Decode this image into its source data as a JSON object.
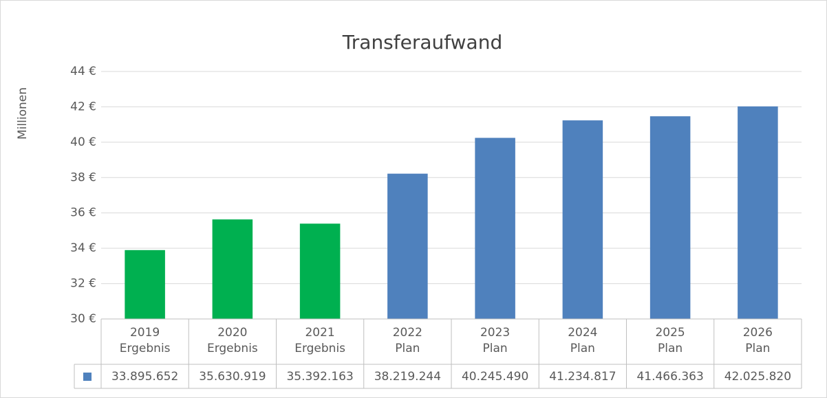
{
  "chart_data": {
    "type": "bar",
    "title": "Transferaufwand",
    "y_label": "Millionen",
    "categories": [
      [
        "2019",
        "Ergebnis"
      ],
      [
        "2020",
        "Ergebnis"
      ],
      [
        "2021",
        "Ergebnis"
      ],
      [
        "2022",
        "Plan"
      ],
      [
        "2023",
        "Plan"
      ],
      [
        "2024",
        "Plan"
      ],
      [
        "2025",
        "Plan"
      ],
      [
        "2026",
        "Plan"
      ]
    ],
    "series": [
      {
        "color": "#4f81bd",
        "values": [
          33.895652,
          35.630919,
          35.392163,
          38.219244,
          40.24549,
          41.234817,
          41.466363,
          42.02582
        ],
        "value_labels": [
          "33.895.652",
          "35.630.919",
          "35.392.163",
          "38.219.244",
          "40.245.490",
          "41.234.817",
          "41.466.363",
          "42.025.820"
        ]
      }
    ],
    "bar_colors": [
      "#00b050",
      "#00b050",
      "#00b050",
      "#4f81bd",
      "#4f81bd",
      "#4f81bd",
      "#4f81bd",
      "#4f81bd"
    ],
    "ylim": [
      30,
      44
    ],
    "yticks": [
      {
        "value": 30,
        "label": "30 €"
      },
      {
        "value": 32,
        "label": "32 €"
      },
      {
        "value": 34,
        "label": "34 €"
      },
      {
        "value": 36,
        "label": "36 €"
      },
      {
        "value": 38,
        "label": "38 €"
      },
      {
        "value": 40,
        "label": "40 €"
      },
      {
        "value": 42,
        "label": "42 €"
      },
      {
        "value": 44,
        "label": "44 €"
      }
    ],
    "grid": true,
    "data_table": true
  }
}
